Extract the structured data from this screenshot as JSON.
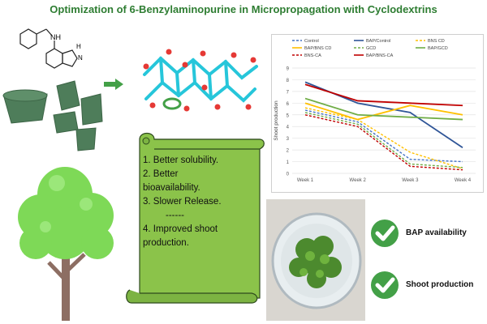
{
  "title": "Optimization of 6-Benzylaminopurine in Micropropagation with Cyclodextrins",
  "molecule": {
    "nh_label": "NH",
    "n_label": "N",
    "h_label": "H"
  },
  "benefits": [
    "1. Better solubility.",
    "2. Better",
    "bioavailability.",
    "3. Slower Release.",
    "------",
    "4. Improved shoot",
    "production."
  ],
  "outcomes": [
    "BAP availability",
    "Shoot production"
  ],
  "colors": {
    "title": "#2e7d32",
    "scroll": "#8bc34a",
    "check": "#43a047",
    "cyclodextrin": "#4e7d5a"
  },
  "icons": [
    "benzylaminopurine-structure",
    "cyclodextrin-cones",
    "arrow-right-icon",
    "inclusion-complex-model",
    "scroll",
    "tree",
    "petri-dish",
    "check-icon"
  ],
  "chart_data": {
    "type": "line",
    "title": "",
    "xlabel": "",
    "ylabel": "Shoot production",
    "categories": [
      "Week 1",
      "Week 2",
      "Week 3",
      "Week 4"
    ],
    "ylim": [
      0,
      9
    ],
    "yticks": [
      0,
      1,
      2,
      3,
      4,
      5,
      6,
      7,
      8,
      9
    ],
    "grid": true,
    "legend_position": "top",
    "series": [
      {
        "name": "Control",
        "values": [
          5.4,
          4.4,
          1.2,
          1.0
        ],
        "color": "#4472c4",
        "dash": true
      },
      {
        "name": "BAP/Control",
        "values": [
          7.8,
          6.0,
          5.2,
          2.2
        ],
        "color": "#2f5597",
        "dash": false
      },
      {
        "name": "BNS CD",
        "values": [
          5.6,
          4.6,
          1.8,
          0.4
        ],
        "color": "#ffc000",
        "dash": true
      },
      {
        "name": "BAP/BNS CD",
        "values": [
          6.0,
          4.6,
          5.8,
          5.0
        ],
        "color": "#ffc000",
        "dash": false
      },
      {
        "name": "GCD",
        "values": [
          5.2,
          4.2,
          0.8,
          0.5
        ],
        "color": "#70ad47",
        "dash": true
      },
      {
        "name": "BAP/GCD",
        "values": [
          6.4,
          5.0,
          4.8,
          4.6
        ],
        "color": "#70ad47",
        "dash": false
      },
      {
        "name": "BNS-CA",
        "values": [
          5.0,
          4.0,
          0.6,
          0.3
        ],
        "color": "#c00000",
        "dash": true
      },
      {
        "name": "BAP/BNS-CA",
        "values": [
          7.6,
          6.2,
          6.0,
          5.8
        ],
        "color": "#c00000",
        "dash": false
      }
    ]
  }
}
